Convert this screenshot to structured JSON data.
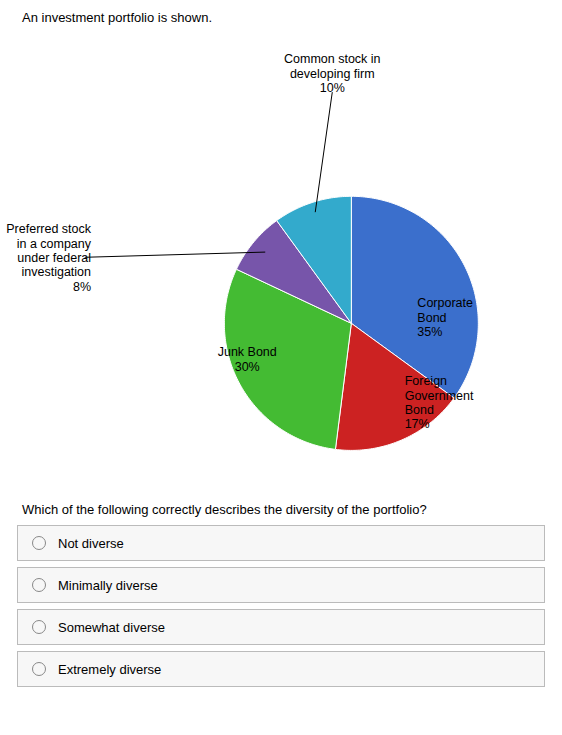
{
  "chart_data": {
    "type": "pie",
    "title": "An investment portfolio is shown.",
    "categories": [
      "Corporate\nBond\n35%",
      "Foreign\nGovernment\nBond\n17%",
      "Junk Bond\n30%",
      "Preferred stock\nin a company\nunder federal\ninvestigation\n8%",
      "Common stock in\ndeveloping firm\n10%"
    ],
    "values": [
      35,
      17,
      30,
      8,
      10
    ],
    "colors": [
      "#3B6FCC",
      "#CC2222",
      "#44BB33",
      "#7755AA",
      "#33AACC"
    ],
    "question": "Which of the following correctly describes the diversity of the portfolio?",
    "options": [
      "Not diverse",
      "Minimally diverse",
      "Somewhat diverse",
      "Extremely diverse"
    ]
  }
}
